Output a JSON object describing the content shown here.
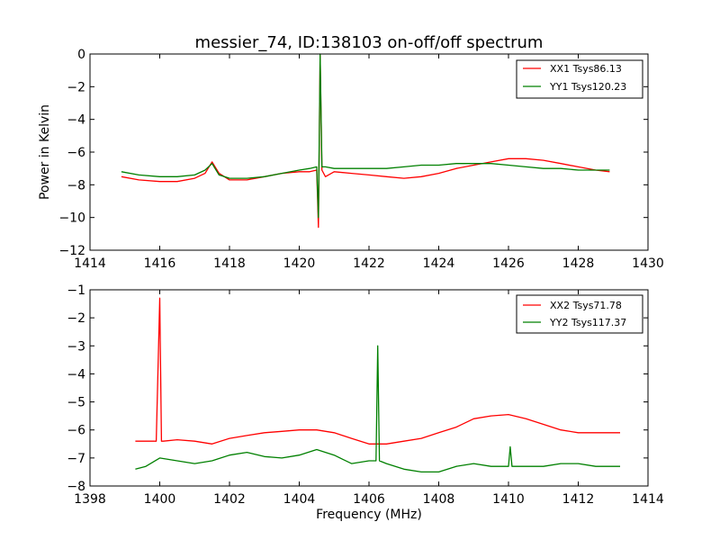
{
  "chart_data": [
    {
      "type": "line",
      "title": "messier_74, ID:138103 on-off/off spectrum",
      "xlabel": "",
      "ylabel": "Power in Kelvin",
      "xlim": [
        1414,
        1430
      ],
      "ylim": [
        -12,
        0
      ],
      "xticks": [
        "1414",
        "1416",
        "1418",
        "1420",
        "1422",
        "1424",
        "1426",
        "1428",
        "1430"
      ],
      "yticks": [
        "0",
        "−2",
        "−4",
        "−6",
        "−8",
        "−10",
        "−12"
      ],
      "legend_position": "upper right",
      "series": [
        {
          "name": "XX1 Tsys86.13",
          "color": "#ff0000",
          "x": [
            1414.9,
            1415.4,
            1416.0,
            1416.5,
            1417.0,
            1417.3,
            1417.5,
            1417.7,
            1418.0,
            1418.5,
            1419.0,
            1419.5,
            1420.0,
            1420.3,
            1420.5,
            1420.55,
            1420.6,
            1420.65,
            1420.75,
            1421.0,
            1421.5,
            1422.0,
            1422.5,
            1423.0,
            1423.5,
            1424.0,
            1424.5,
            1425.0,
            1425.5,
            1426.0,
            1426.5,
            1427.0,
            1427.5,
            1428.0,
            1428.5,
            1428.9
          ],
          "y": [
            -7.5,
            -7.7,
            -7.8,
            -7.8,
            -7.6,
            -7.3,
            -6.6,
            -7.3,
            -7.7,
            -7.7,
            -7.5,
            -7.3,
            -7.2,
            -7.2,
            -7.1,
            -10.6,
            -0.1,
            -7.1,
            -7.5,
            -7.2,
            -7.3,
            -7.4,
            -7.5,
            -7.6,
            -7.5,
            -7.3,
            -7.0,
            -6.8,
            -6.6,
            -6.4,
            -6.4,
            -6.5,
            -6.7,
            -6.9,
            -7.1,
            -7.2
          ]
        },
        {
          "name": "YY1 Tsys120.23",
          "color": "#008000",
          "x": [
            1414.9,
            1415.4,
            1416.0,
            1416.5,
            1417.0,
            1417.3,
            1417.5,
            1417.7,
            1418.0,
            1418.5,
            1419.0,
            1419.5,
            1420.0,
            1420.3,
            1420.5,
            1420.55,
            1420.6,
            1420.65,
            1420.75,
            1421.0,
            1421.5,
            1422.0,
            1422.5,
            1423.0,
            1423.5,
            1424.0,
            1424.5,
            1425.0,
            1425.5,
            1426.0,
            1426.5,
            1427.0,
            1427.5,
            1428.0,
            1428.5,
            1428.9
          ],
          "y": [
            -7.2,
            -7.4,
            -7.5,
            -7.5,
            -7.4,
            -7.1,
            -6.7,
            -7.4,
            -7.6,
            -7.6,
            -7.5,
            -7.3,
            -7.1,
            -7.0,
            -6.9,
            -10.0,
            0.0,
            -6.9,
            -6.9,
            -7.0,
            -7.0,
            -7.0,
            -7.0,
            -6.9,
            -6.8,
            -6.8,
            -6.7,
            -6.7,
            -6.7,
            -6.8,
            -6.9,
            -7.0,
            -7.0,
            -7.1,
            -7.1,
            -7.1
          ]
        }
      ]
    },
    {
      "type": "line",
      "title": "",
      "xlabel": "Frequency (MHz)",
      "ylabel": "",
      "xlim": [
        1398,
        1414
      ],
      "ylim": [
        -8,
        -1
      ],
      "xticks": [
        "1398",
        "1400",
        "1402",
        "1404",
        "1406",
        "1408",
        "1410",
        "1412",
        "1414"
      ],
      "yticks": [
        "−1",
        "−2",
        "−3",
        "−4",
        "−5",
        "−6",
        "−7",
        "−8"
      ],
      "legend_position": "upper right",
      "series": [
        {
          "name": "XX2 Tsys71.78",
          "color": "#ff0000",
          "x": [
            1399.3,
            1399.6,
            1399.9,
            1400.0,
            1400.05,
            1400.1,
            1400.5,
            1401.0,
            1401.5,
            1402.0,
            1402.5,
            1403.0,
            1403.5,
            1404.0,
            1404.5,
            1405.0,
            1405.5,
            1406.0,
            1406.5,
            1407.0,
            1407.5,
            1408.0,
            1408.5,
            1409.0,
            1409.5,
            1410.0,
            1410.5,
            1411.0,
            1411.5,
            1412.0,
            1412.5,
            1413.2
          ],
          "y": [
            -6.4,
            -6.4,
            -6.4,
            -1.3,
            -6.4,
            -6.4,
            -6.35,
            -6.4,
            -6.5,
            -6.3,
            -6.2,
            -6.1,
            -6.05,
            -6.0,
            -6.0,
            -6.1,
            -6.3,
            -6.5,
            -6.5,
            -6.4,
            -6.3,
            -6.1,
            -5.9,
            -5.6,
            -5.5,
            -5.45,
            -5.6,
            -5.8,
            -6.0,
            -6.1,
            -6.1,
            -6.1
          ]
        },
        {
          "name": "YY2 Tsys117.37",
          "color": "#008000",
          "x": [
            1399.3,
            1399.6,
            1400.0,
            1400.5,
            1401.0,
            1401.5,
            1402.0,
            1402.5,
            1403.0,
            1403.5,
            1404.0,
            1404.5,
            1405.0,
            1405.5,
            1406.0,
            1406.2,
            1406.25,
            1406.3,
            1406.5,
            1407.0,
            1407.5,
            1408.0,
            1408.5,
            1409.0,
            1409.5,
            1410.0,
            1410.05,
            1410.1,
            1410.5,
            1411.0,
            1411.5,
            1412.0,
            1412.5,
            1413.2
          ],
          "y": [
            -7.4,
            -7.3,
            -7.0,
            -7.1,
            -7.2,
            -7.1,
            -6.9,
            -6.8,
            -6.95,
            -7.0,
            -6.9,
            -6.7,
            -6.9,
            -7.2,
            -7.1,
            -7.1,
            -3.0,
            -7.1,
            -7.2,
            -7.4,
            -7.5,
            -7.5,
            -7.3,
            -7.2,
            -7.3,
            -7.3,
            -6.6,
            -7.3,
            -7.3,
            -7.3,
            -7.2,
            -7.2,
            -7.3,
            -7.3
          ]
        }
      ]
    }
  ]
}
